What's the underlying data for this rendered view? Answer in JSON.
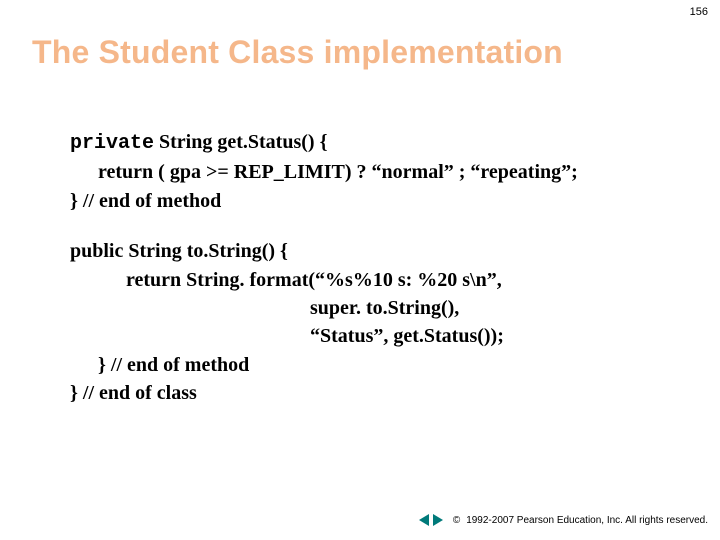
{
  "page_number": "156",
  "title": "The Student Class implementation",
  "colors": {
    "title_color": "#f5b78a",
    "background": "#ffffff",
    "text": "#000000",
    "arrow": "#007a7a"
  },
  "typography": {
    "title_font": "Arial",
    "title_fontsize_pt": 32,
    "title_weight": "bold",
    "body_font": "Times New Roman",
    "body_fontsize_pt": 20,
    "mono_font": "Courier New",
    "footer_font": "Arial",
    "footer_fontsize_pt": 10,
    "pagenum_fontsize_pt": 11
  },
  "code": {
    "method1": {
      "keyword_private": "private",
      "signature_rest": " String get.Status() {",
      "body_line": "return ( gpa >= REP_LIMIT) ? “normal” ; “repeating”;",
      "close_line": "} // end of method"
    },
    "method2": {
      "signature": "public String to.String() {",
      "body_line1": "return String. format(“%s%10 s: %20 s\\n”,",
      "body_line2": "super. to.String(),",
      "body_line3": "“Status”, get.Status());",
      "close_method": "} // end of method",
      "close_class": "} // end of class"
    }
  },
  "footer": {
    "copyright_symbol": "©",
    "text": "1992-2007 Pearson Education, Inc. All rights reserved."
  }
}
